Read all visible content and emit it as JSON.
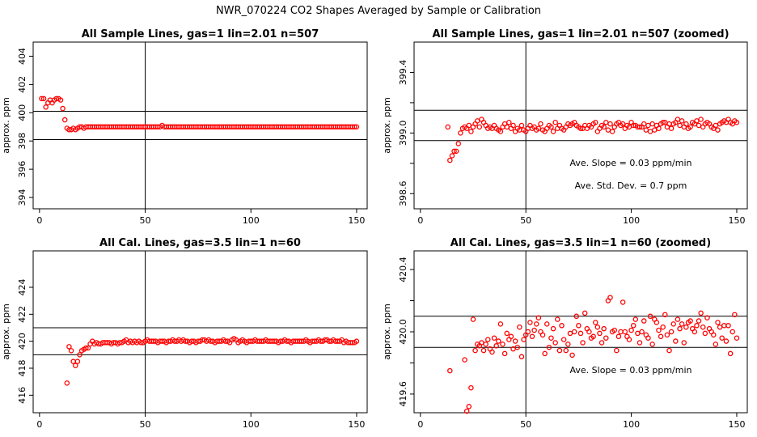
{
  "title": "NWR_070224  CO2 Shapes Averaged by Sample or Calibration",
  "chart_data": [
    {
      "type": "scatter",
      "title": "All Sample Lines, gas=1 lin=2.01 n=507",
      "xlabel": "",
      "ylabel": "approx. ppm",
      "xlim": [
        -3,
        155
      ],
      "ylim": [
        393.2,
        405.0
      ],
      "xticks": [
        0,
        50,
        100,
        150
      ],
      "yticks": [
        394,
        396,
        398,
        400,
        402,
        404
      ],
      "hlines": [
        398.1,
        400.1
      ],
      "vline": 50,
      "annotations": [],
      "color": "#ff0000",
      "x": [
        1,
        2,
        3,
        4,
        5,
        6,
        7,
        8,
        9,
        10,
        11,
        12,
        13,
        14,
        15,
        16,
        17,
        18,
        19,
        20,
        21,
        22,
        23,
        24,
        25,
        26,
        27,
        28,
        29,
        30,
        31,
        32,
        33,
        34,
        35,
        36,
        37,
        38,
        39,
        40,
        41,
        42,
        43,
        44,
        45,
        46,
        47,
        48,
        49,
        50,
        51,
        52,
        53,
        54,
        55,
        56,
        57,
        58,
        59,
        60,
        61,
        62,
        63,
        64,
        65,
        66,
        67,
        68,
        69,
        70,
        71,
        72,
        73,
        74,
        75,
        76,
        77,
        78,
        79,
        80,
        81,
        82,
        83,
        84,
        85,
        86,
        87,
        88,
        89,
        90,
        91,
        92,
        93,
        94,
        95,
        96,
        97,
        98,
        99,
        100,
        101,
        102,
        103,
        104,
        105,
        106,
        107,
        108,
        109,
        110,
        111,
        112,
        113,
        114,
        115,
        116,
        117,
        118,
        119,
        120,
        121,
        122,
        123,
        124,
        125,
        126,
        127,
        128,
        129,
        130,
        131,
        132,
        133,
        134,
        135,
        136,
        137,
        138,
        139,
        140,
        141,
        142,
        143,
        144,
        145,
        146,
        147,
        148,
        149,
        150
      ],
      "y": [
        401.0,
        401.0,
        400.4,
        400.7,
        400.9,
        400.7,
        400.9,
        401.0,
        401.0,
        400.9,
        400.3,
        399.5,
        398.9,
        398.8,
        398.8,
        398.9,
        398.8,
        398.9,
        399.0,
        399.0,
        398.9,
        399.0,
        399.0,
        399.0,
        399.0,
        399.0,
        399.0,
        399.0,
        399.0,
        399.0,
        399.0,
        399.0,
        399.0,
        399.0,
        399.0,
        399.0,
        399.0,
        399.0,
        399.0,
        399.0,
        399.0,
        399.0,
        399.0,
        399.0,
        399.0,
        399.0,
        399.0,
        399.0,
        399.0,
        399.0,
        399.0,
        399.0,
        399.0,
        399.0,
        399.0,
        399.0,
        399.0,
        399.1,
        399.0,
        399.0,
        399.0,
        399.0,
        399.0,
        399.0,
        399.0,
        399.0,
        399.0,
        399.0,
        399.0,
        399.0,
        399.0,
        399.0,
        399.0,
        399.0,
        399.0,
        399.0,
        399.0,
        399.0,
        399.0,
        399.0,
        399.0,
        399.0,
        399.0,
        399.0,
        399.0,
        399.0,
        399.0,
        399.0,
        399.0,
        399.0,
        399.0,
        399.0,
        399.0,
        399.0,
        399.0,
        399.0,
        399.0,
        399.0,
        399.0,
        399.0,
        399.0,
        399.0,
        399.0,
        399.0,
        399.0,
        399.0,
        399.0,
        399.0,
        399.0,
        399.0,
        399.0,
        399.0,
        399.0,
        399.0,
        399.0,
        399.0,
        399.0,
        399.0,
        399.0,
        399.0,
        399.0,
        399.0,
        399.0,
        399.0,
        399.0,
        399.0,
        399.0,
        399.0,
        399.0,
        399.0,
        399.0,
        399.0,
        399.0,
        399.0,
        399.0,
        399.0,
        399.0,
        399.0,
        399.0,
        399.0,
        399.0,
        399.0,
        399.0,
        399.0,
        399.0,
        399.0,
        399.0,
        399.0,
        399.0,
        399.0
      ]
    },
    {
      "type": "scatter",
      "title": "All Sample Lines, gas=1 lin=2.01 n=507 (zoomed)",
      "xlabel": "",
      "ylabel": "approx. ppm",
      "xlim": [
        -3,
        155
      ],
      "ylim": [
        398.5,
        399.6
      ],
      "xticks": [
        0,
        50,
        100,
        150
      ],
      "yticks": [
        398.6,
        398.8,
        399.0,
        399.2,
        399.4
      ],
      "yticklabels": [
        "398.6",
        "",
        "399.0",
        "",
        "399.4"
      ],
      "hlines": [
        398.95,
        399.15
      ],
      "vline": 50,
      "annotations": [
        "Ave. Slope =  0.03  ppm/min",
        "Ave. Std. Dev. =  0.7  ppm"
      ],
      "color": "#ff0000",
      "x": [
        13,
        14,
        15,
        16,
        17,
        18,
        19,
        20,
        21,
        22,
        23,
        24,
        25,
        26,
        27,
        28,
        29,
        30,
        31,
        32,
        33,
        34,
        35,
        36,
        37,
        38,
        39,
        40,
        41,
        42,
        43,
        44,
        45,
        46,
        47,
        48,
        49,
        50,
        51,
        52,
        53,
        54,
        55,
        56,
        57,
        58,
        59,
        60,
        61,
        62,
        63,
        64,
        65,
        66,
        67,
        68,
        69,
        70,
        71,
        72,
        73,
        74,
        75,
        76,
        77,
        78,
        79,
        80,
        81,
        82,
        83,
        84,
        85,
        86,
        87,
        88,
        89,
        90,
        91,
        92,
        93,
        94,
        95,
        96,
        97,
        98,
        99,
        100,
        101,
        102,
        103,
        104,
        105,
        106,
        107,
        108,
        109,
        110,
        111,
        112,
        113,
        114,
        115,
        116,
        117,
        118,
        119,
        120,
        121,
        122,
        123,
        124,
        125,
        126,
        127,
        128,
        129,
        130,
        131,
        132,
        133,
        134,
        135,
        136,
        137,
        138,
        139,
        140,
        141,
        142,
        143,
        144,
        145,
        146,
        147,
        148,
        149,
        150
      ],
      "y": [
        399.04,
        398.82,
        398.85,
        398.88,
        398.88,
        398.93,
        399.0,
        399.03,
        399.04,
        399.03,
        399.05,
        399.01,
        399.04,
        399.06,
        399.08,
        399.04,
        399.09,
        399.07,
        399.05,
        399.03,
        399.04,
        399.03,
        399.05,
        399.03,
        399.02,
        399.01,
        399.04,
        399.06,
        399.04,
        399.07,
        399.03,
        399.05,
        399.01,
        399.03,
        399.02,
        399.05,
        399.02,
        399.01,
        399.03,
        399.05,
        399.03,
        399.04,
        399.02,
        399.03,
        399.06,
        399.02,
        399.01,
        399.03,
        399.05,
        399.04,
        399.01,
        399.07,
        399.03,
        399.05,
        399.03,
        399.02,
        399.04,
        399.06,
        399.05,
        399.06,
        399.07,
        399.05,
        399.04,
        399.03,
        399.03,
        399.05,
        399.03,
        399.05,
        399.04,
        399.06,
        399.07,
        399.01,
        399.03,
        399.05,
        399.04,
        399.07,
        399.02,
        399.06,
        399.01,
        399.04,
        399.06,
        399.07,
        399.05,
        399.06,
        399.03,
        399.05,
        399.04,
        399.07,
        399.05,
        399.05,
        399.04,
        399.04,
        399.04,
        399.06,
        399.02,
        399.05,
        399.01,
        399.06,
        399.02,
        399.05,
        399.03,
        399.06,
        399.07,
        399.07,
        399.04,
        399.06,
        399.03,
        399.06,
        399.07,
        399.09,
        399.05,
        399.08,
        399.04,
        399.06,
        399.03,
        399.04,
        399.07,
        399.06,
        399.08,
        399.05,
        399.09,
        399.04,
        399.06,
        399.07,
        399.06,
        399.04,
        399.03,
        399.05,
        399.02,
        399.06,
        399.07,
        399.08,
        399.07,
        399.09,
        399.07,
        399.06,
        399.08,
        399.07
      ]
    },
    {
      "type": "scatter",
      "title": "All Cal. Lines, gas=3.5 lin=1 n=60",
      "xlabel": "",
      "ylabel": "approx. ppm",
      "xlim": [
        -3,
        155
      ],
      "ylim": [
        414.7,
        426.7
      ],
      "xticks": [
        0,
        50,
        100,
        150
      ],
      "yticks": [
        416,
        418,
        420,
        422,
        424
      ],
      "hlines": [
        419.0,
        421.0
      ],
      "vline": 50,
      "annotations": [],
      "color": "#ff0000",
      "x": [
        13,
        14,
        15,
        16,
        17,
        18,
        19,
        20,
        21,
        22,
        23,
        24,
        25,
        26,
        27,
        28,
        29,
        30,
        31,
        32,
        33,
        34,
        35,
        36,
        37,
        38,
        39,
        40,
        41,
        42,
        43,
        44,
        45,
        46,
        47,
        48,
        49,
        50,
        51,
        52,
        53,
        54,
        55,
        56,
        57,
        58,
        59,
        60,
        61,
        62,
        63,
        64,
        65,
        66,
        67,
        68,
        69,
        70,
        71,
        72,
        73,
        74,
        75,
        76,
        77,
        78,
        79,
        80,
        81,
        82,
        83,
        84,
        85,
        86,
        87,
        88,
        89,
        90,
        91,
        92,
        93,
        94,
        95,
        96,
        97,
        98,
        99,
        100,
        101,
        102,
        103,
        104,
        105,
        106,
        107,
        108,
        109,
        110,
        111,
        112,
        113,
        114,
        115,
        116,
        117,
        118,
        119,
        120,
        121,
        122,
        123,
        124,
        125,
        126,
        127,
        128,
        129,
        130,
        131,
        132,
        133,
        134,
        135,
        136,
        137,
        138,
        139,
        140,
        141,
        142,
        143,
        144,
        145,
        146,
        147,
        148,
        149,
        150
      ],
      "y": [
        416.9,
        419.6,
        419.3,
        418.5,
        418.2,
        418.5,
        419.0,
        419.3,
        419.4,
        419.5,
        419.5,
        419.8,
        420.0,
        419.8,
        419.9,
        419.8,
        419.8,
        419.9,
        419.9,
        419.9,
        419.9,
        419.8,
        419.9,
        419.9,
        419.8,
        419.9,
        419.9,
        420.0,
        420.1,
        419.9,
        420.0,
        419.9,
        420.0,
        419.9,
        420.0,
        419.9,
        419.9,
        420.0,
        420.1,
        420.0,
        420.0,
        420.0,
        420.0,
        419.9,
        420.0,
        420.0,
        420.0,
        419.9,
        420.0,
        420.0,
        420.1,
        420.0,
        420.0,
        420.1,
        420.0,
        420.1,
        420.0,
        420.0,
        419.9,
        420.0,
        420.0,
        419.9,
        420.0,
        420.0,
        420.1,
        420.1,
        420.0,
        420.1,
        420.0,
        420.0,
        419.9,
        420.0,
        420.0,
        420.0,
        420.1,
        420.0,
        420.0,
        419.9,
        420.1,
        420.2,
        420.1,
        419.9,
        420.0,
        420.1,
        420.0,
        419.9,
        420.0,
        420.0,
        420.0,
        420.1,
        420.0,
        420.0,
        420.0,
        420.0,
        420.1,
        420.0,
        420.0,
        420.0,
        420.0,
        420.0,
        419.9,
        420.0,
        420.0,
        420.1,
        420.0,
        420.0,
        419.9,
        420.0,
        420.0,
        420.0,
        420.0,
        420.0,
        420.0,
        420.1,
        420.0,
        419.9,
        420.0,
        420.0,
        420.0,
        420.1,
        420.0,
        420.0,
        420.1,
        420.1,
        420.0,
        420.0,
        420.1,
        420.0,
        420.0,
        420.0,
        420.1,
        419.9,
        420.0,
        419.9,
        419.9,
        419.9,
        419.9,
        420.0
      ]
    },
    {
      "type": "scatter",
      "title": "All Cal. Lines, gas=3.5 lin=1 n=60 (zoomed)",
      "xlabel": "",
      "ylabel": "approx. ppm",
      "xlim": [
        -3,
        155
      ],
      "ylim": [
        419.48,
        420.52
      ],
      "xticks": [
        0,
        50,
        100,
        150
      ],
      "yticks": [
        419.6,
        419.8,
        420.0,
        420.2,
        420.4
      ],
      "yticklabels": [
        "419.6",
        "",
        "420.0",
        "",
        "420.4"
      ],
      "hlines": [
        419.9,
        420.1
      ],
      "vline": 50,
      "annotations": [
        "Ave. Slope =  0.03  ppm/min"
      ],
      "color": "#ff0000",
      "x": [
        14,
        21,
        22,
        23,
        24,
        25,
        26,
        27,
        28,
        29,
        30,
        31,
        32,
        33,
        34,
        35,
        36,
        37,
        38,
        39,
        40,
        41,
        42,
        43,
        44,
        45,
        46,
        47,
        48,
        49,
        50,
        51,
        52,
        53,
        54,
        55,
        56,
        57,
        58,
        59,
        60,
        61,
        62,
        63,
        64,
        65,
        66,
        67,
        68,
        69,
        70,
        71,
        72,
        73,
        74,
        75,
        76,
        77,
        78,
        79,
        80,
        81,
        82,
        83,
        84,
        85,
        86,
        87,
        88,
        89,
        90,
        91,
        92,
        93,
        94,
        95,
        96,
        97,
        98,
        99,
        100,
        101,
        102,
        103,
        104,
        105,
        106,
        107,
        108,
        109,
        110,
        111,
        112,
        113,
        114,
        115,
        116,
        117,
        118,
        119,
        120,
        121,
        122,
        123,
        124,
        125,
        126,
        127,
        128,
        129,
        130,
        131,
        132,
        133,
        134,
        135,
        136,
        137,
        138,
        139,
        140,
        141,
        142,
        143,
        144,
        145,
        146,
        147,
        148,
        149,
        150
      ],
      "y": [
        419.75,
        419.82,
        419.49,
        419.52,
        419.64,
        420.08,
        419.88,
        419.92,
        419.91,
        419.93,
        419.88,
        419.92,
        419.95,
        419.89,
        419.87,
        419.96,
        419.91,
        419.94,
        420.05,
        419.92,
        419.86,
        419.99,
        419.95,
        419.97,
        419.89,
        419.94,
        419.9,
        420.03,
        419.84,
        419.95,
        419.98,
        420.0,
        420.06,
        419.97,
        420.01,
        420.05,
        420.09,
        420.0,
        419.98,
        419.86,
        420.05,
        419.9,
        419.96,
        420.02,
        419.93,
        420.08,
        419.88,
        420.04,
        419.95,
        419.88,
        419.92,
        419.99,
        419.85,
        420.0,
        420.1,
        420.04,
        419.99,
        419.93,
        420.12,
        420.02,
        420.0,
        419.96,
        419.97,
        420.06,
        420.03,
        419.99,
        419.93,
        420.02,
        419.96,
        420.2,
        420.22,
        420.0,
        420.01,
        419.88,
        419.97,
        420.0,
        420.19,
        420.0,
        419.97,
        419.95,
        420.01,
        420.04,
        420.08,
        419.99,
        419.93,
        420.0,
        420.07,
        419.98,
        419.96,
        420.1,
        419.92,
        420.08,
        420.06,
        420.01,
        419.97,
        420.03,
        420.11,
        419.98,
        419.88,
        420.0,
        420.05,
        419.94,
        420.08,
        420.02,
        420.05,
        419.93,
        420.03,
        420.06,
        420.07,
        420.02,
        420.0,
        420.04,
        420.07,
        420.12,
        420.03,
        419.99,
        420.09,
        420.02,
        420.0,
        419.98,
        419.92,
        420.06,
        420.03,
        419.96,
        420.04,
        419.94,
        420.04,
        419.86,
        420.0,
        420.11,
        419.96
      ]
    }
  ]
}
